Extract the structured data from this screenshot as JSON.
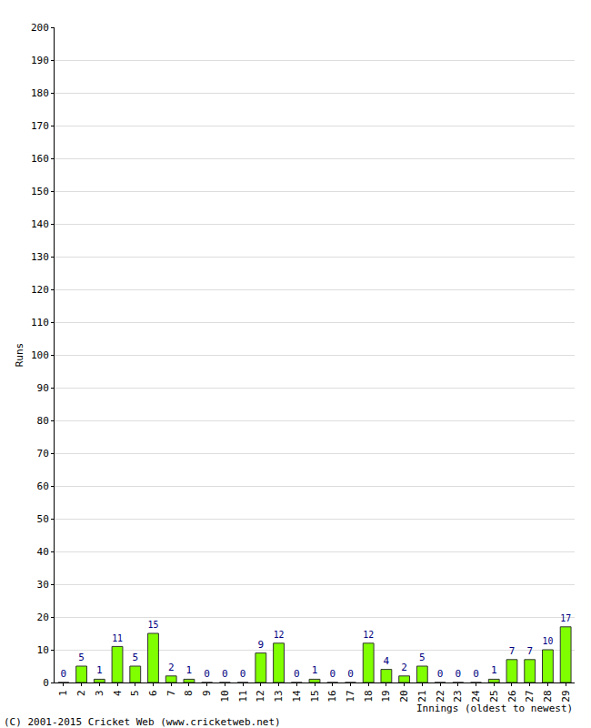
{
  "chart_data": {
    "type": "bar",
    "xlabel": "Innings (oldest to newest)",
    "ylabel": "Runs",
    "annotations": [
      "(C) 2001-2015 Cricket Web (www.cricketweb.net)"
    ],
    "categories": [
      "1",
      "2",
      "3",
      "4",
      "5",
      "6",
      "7",
      "8",
      "9",
      "10",
      "11",
      "12",
      "13",
      "14",
      "15",
      "16",
      "17",
      "18",
      "19",
      "20",
      "21",
      "22",
      "23",
      "24",
      "25",
      "26",
      "27",
      "28",
      "29"
    ],
    "values": [
      0,
      5,
      1,
      11,
      5,
      15,
      2,
      1,
      0,
      0,
      0,
      9,
      12,
      0,
      1,
      0,
      0,
      12,
      4,
      2,
      5,
      0,
      0,
      0,
      1,
      7,
      7,
      10,
      17
    ],
    "color": "#80ff00",
    "ylim": [
      0,
      200
    ],
    "yticks": [
      0,
      10,
      20,
      30,
      40,
      50,
      60,
      70,
      80,
      90,
      100,
      110,
      120,
      130,
      140,
      150,
      160,
      170,
      180,
      190,
      200
    ],
    "grid": true,
    "data_labels": true
  }
}
